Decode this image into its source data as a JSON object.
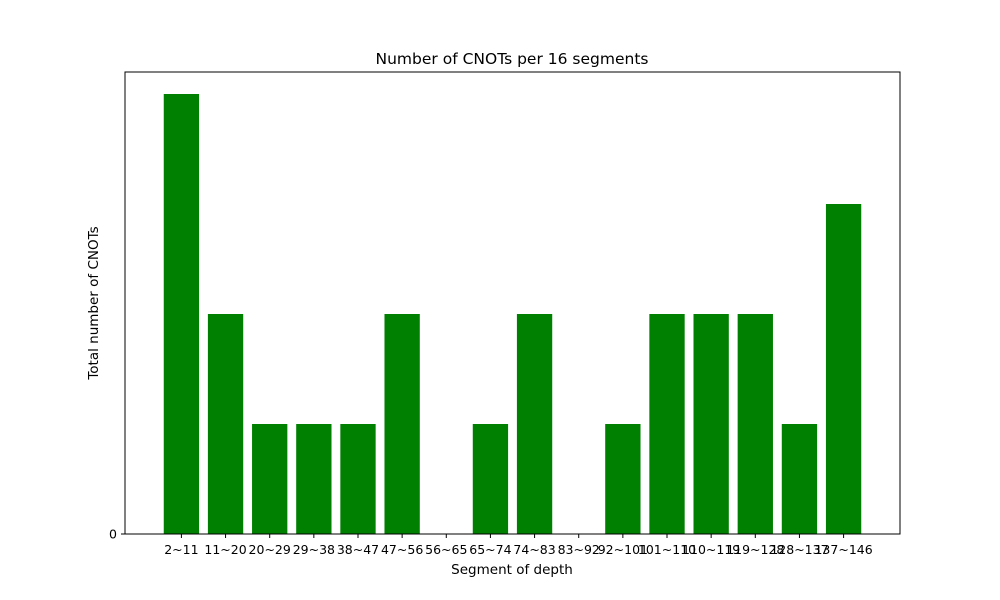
{
  "chart_data": {
    "type": "bar",
    "title": "Number of CNOTs per 16 segments",
    "xlabel": "Segment of depth",
    "ylabel": "Total number of CNOTs",
    "categories": [
      "2~11",
      "11~20",
      "20~29",
      "29~38",
      "38~47",
      "47~56",
      "56~65",
      "65~74",
      "74~83",
      "83~92",
      "92~101",
      "101~110",
      "110~119",
      "119~128",
      "128~137",
      "137~146"
    ],
    "values": [
      4,
      2,
      1,
      1,
      1,
      2,
      0,
      1,
      2,
      0,
      1,
      2,
      2,
      2,
      1,
      3
    ],
    "y_ticks": [
      0
    ],
    "y_tick_labels": [
      "0"
    ],
    "ylim": [
      0,
      4.2
    ],
    "bar_color": "#008000",
    "grid": false,
    "legend": "none"
  }
}
